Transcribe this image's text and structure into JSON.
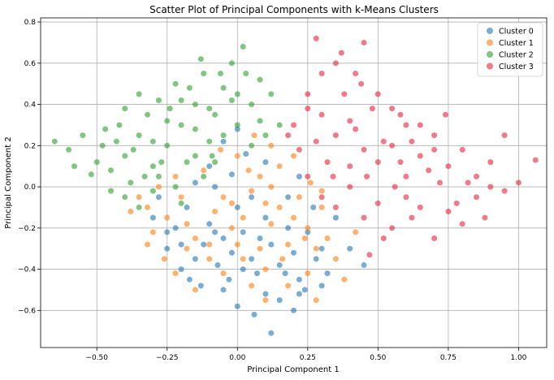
{
  "chart_data": {
    "type": "scatter",
    "title": "Scatter Plot of Principal Components with k-Means Clusters",
    "xlabel": "Principal Component 1",
    "ylabel": "Principal Component 2",
    "xlim": [
      -0.7,
      1.1
    ],
    "ylim": [
      -0.78,
      0.82
    ],
    "xticks": [
      -0.5,
      -0.25,
      0.0,
      0.25,
      0.5,
      0.75,
      1.0
    ],
    "xtick_labels": [
      "−0.50",
      "−0.25",
      "0.00",
      "0.25",
      "0.50",
      "0.75",
      "1.00"
    ],
    "yticks": [
      -0.6,
      -0.4,
      -0.2,
      0.0,
      0.2,
      0.4,
      0.6,
      0.8
    ],
    "ytick_labels": [
      "−0.6",
      "−0.4",
      "−0.2",
      "0.0",
      "0.2",
      "0.4",
      "0.6",
      "0.8"
    ],
    "grid": true,
    "legend_position": "top-right",
    "series": [
      {
        "name": "Cluster 0",
        "color": "#1f77b4",
        "points": [
          [
            0.12,
            -0.71
          ],
          [
            -0.05,
            -0.5
          ],
          [
            0.1,
            -0.52
          ],
          [
            -0.03,
            -0.45
          ],
          [
            0.2,
            -0.6
          ],
          [
            -0.15,
            -0.35
          ],
          [
            -0.2,
            -0.28
          ],
          [
            -0.1,
            -0.18
          ],
          [
            0.0,
            -0.1
          ],
          [
            0.05,
            -0.05
          ],
          [
            -0.08,
            0.0
          ],
          [
            -0.02,
            0.06
          ],
          [
            0.03,
            0.16
          ],
          [
            -0.05,
            0.22
          ],
          [
            0.0,
            0.28
          ],
          [
            0.08,
            -0.25
          ],
          [
            0.15,
            -0.38
          ],
          [
            0.22,
            -0.45
          ],
          [
            0.18,
            -0.2
          ],
          [
            0.25,
            -0.22
          ],
          [
            0.3,
            -0.3
          ],
          [
            0.35,
            -0.15
          ],
          [
            0.4,
            -0.3
          ],
          [
            0.45,
            -0.38
          ],
          [
            -0.18,
            -0.1
          ],
          [
            -0.22,
            -0.2
          ],
          [
            -0.12,
            -0.28
          ],
          [
            -0.07,
            -0.38
          ],
          [
            -0.13,
            -0.48
          ],
          [
            0.05,
            -0.35
          ],
          [
            0.1,
            -0.15
          ],
          [
            -0.25,
            -0.3
          ],
          [
            -0.3,
            -0.15
          ],
          [
            -0.28,
            -0.05
          ],
          [
            -0.15,
            0.02
          ],
          [
            -0.1,
            0.1
          ],
          [
            0.02,
            -0.22
          ],
          [
            0.12,
            -0.28
          ],
          [
            0.2,
            -0.32
          ],
          [
            0.28,
            -0.35
          ],
          [
            -0.05,
            -0.25
          ],
          [
            0.07,
            -0.42
          ],
          [
            0.15,
            -0.55
          ],
          [
            0.22,
            -0.52
          ],
          [
            -0.2,
            -0.4
          ],
          [
            -0.17,
            -0.45
          ],
          [
            0.0,
            -0.58
          ],
          [
            0.06,
            -0.62
          ],
          [
            0.32,
            -0.42
          ],
          [
            0.27,
            -0.1
          ],
          [
            0.18,
            -0.05
          ],
          [
            0.22,
            0.05
          ],
          [
            0.1,
            0.12
          ],
          [
            -0.02,
            -0.32
          ],
          [
            -0.08,
            -0.22
          ],
          [
            0.02,
            -0.4
          ],
          [
            0.17,
            -0.42
          ],
          [
            0.24,
            -0.5
          ],
          [
            0.3,
            -0.48
          ],
          [
            -0.25,
            -0.22
          ]
        ]
      },
      {
        "name": "Cluster 1",
        "color": "#ff7f0e",
        "points": [
          [
            -0.32,
            -0.1
          ],
          [
            -0.3,
            -0.22
          ],
          [
            -0.25,
            -0.15
          ],
          [
            -0.2,
            -0.05
          ],
          [
            -0.18,
            -0.18
          ],
          [
            -0.15,
            -0.25
          ],
          [
            -0.1,
            -0.35
          ],
          [
            -0.08,
            -0.12
          ],
          [
            -0.05,
            -0.05
          ],
          [
            -0.02,
            -0.2
          ],
          [
            0.0,
            -0.28
          ],
          [
            0.02,
            -0.15
          ],
          [
            0.05,
            -0.02
          ],
          [
            0.08,
            0.05
          ],
          [
            0.1,
            -0.08
          ],
          [
            0.12,
            -0.18
          ],
          [
            0.15,
            -0.1
          ],
          [
            0.18,
            -0.28
          ],
          [
            0.2,
            -0.15
          ],
          [
            0.22,
            -0.05
          ],
          [
            0.25,
            -0.2
          ],
          [
            0.28,
            -0.3
          ],
          [
            0.3,
            -0.1
          ],
          [
            0.15,
            0.1
          ],
          [
            0.12,
            0.2
          ],
          [
            0.06,
            0.25
          ],
          [
            0.0,
            0.15
          ],
          [
            -0.06,
            0.18
          ],
          [
            -0.12,
            0.08
          ],
          [
            -0.22,
            0.05
          ],
          [
            -0.28,
            0.0
          ],
          [
            -0.35,
            -0.05
          ],
          [
            -0.38,
            -0.12
          ],
          [
            -0.32,
            -0.28
          ],
          [
            -0.26,
            -0.35
          ],
          [
            -0.22,
            -0.42
          ],
          [
            -0.15,
            -0.5
          ],
          [
            -0.05,
            -0.42
          ],
          [
            0.05,
            -0.48
          ],
          [
            0.1,
            -0.55
          ],
          [
            0.18,
            -0.48
          ],
          [
            0.25,
            -0.42
          ],
          [
            0.28,
            -0.55
          ],
          [
            0.32,
            -0.25
          ],
          [
            0.35,
            -0.35
          ],
          [
            0.38,
            -0.45
          ],
          [
            0.42,
            -0.22
          ],
          [
            0.02,
            -0.35
          ],
          [
            -0.02,
            -0.08
          ],
          [
            0.08,
            -0.3
          ],
          [
            0.16,
            -0.35
          ],
          [
            0.24,
            -0.25
          ],
          [
            0.12,
            0.0
          ],
          [
            0.04,
            0.08
          ],
          [
            -0.1,
            -0.28
          ],
          [
            -0.18,
            -0.3
          ],
          [
            0.2,
            0.15
          ],
          [
            0.26,
            0.02
          ],
          [
            0.1,
            -0.4
          ],
          [
            0.3,
            -0.02
          ]
        ]
      },
      {
        "name": "Cluster 2",
        "color": "#2ca02c",
        "points": [
          [
            -0.65,
            0.22
          ],
          [
            -0.6,
            0.18
          ],
          [
            -0.55,
            0.25
          ],
          [
            -0.5,
            0.12
          ],
          [
            -0.48,
            0.2
          ],
          [
            -0.45,
            0.08
          ],
          [
            -0.42,
            0.3
          ],
          [
            -0.4,
            0.15
          ],
          [
            -0.38,
            0.02
          ],
          [
            -0.35,
            0.25
          ],
          [
            -0.32,
            0.35
          ],
          [
            -0.3,
            0.1
          ],
          [
            -0.28,
            0.42
          ],
          [
            -0.25,
            0.2
          ],
          [
            -0.22,
            0.5
          ],
          [
            -0.2,
            0.3
          ],
          [
            -0.18,
            0.12
          ],
          [
            -0.15,
            0.4
          ],
          [
            -0.12,
            0.55
          ],
          [
            -0.1,
            0.22
          ],
          [
            -0.08,
            0.35
          ],
          [
            -0.05,
            0.48
          ],
          [
            -0.02,
            0.6
          ],
          [
            0.0,
            0.3
          ],
          [
            0.02,
            0.68
          ],
          [
            0.05,
            0.4
          ],
          [
            0.08,
            0.52
          ],
          [
            0.1,
            0.25
          ],
          [
            0.12,
            0.45
          ],
          [
            0.15,
            0.3
          ],
          [
            -0.45,
            -0.02
          ],
          [
            -0.4,
            -0.05
          ],
          [
            -0.35,
            -0.1
          ],
          [
            -0.3,
            -0.02
          ],
          [
            -0.28,
            0.05
          ],
          [
            -0.22,
            0.0
          ],
          [
            -0.2,
            -0.08
          ],
          [
            -0.15,
            0.15
          ],
          [
            -0.12,
            0.05
          ],
          [
            -0.08,
            0.12
          ],
          [
            -0.4,
            0.38
          ],
          [
            -0.35,
            0.45
          ],
          [
            -0.3,
            0.22
          ],
          [
            -0.25,
            0.32
          ],
          [
            -0.2,
            0.42
          ],
          [
            -0.15,
            0.28
          ],
          [
            -0.1,
            0.38
          ],
          [
            -0.05,
            0.25
          ],
          [
            0.0,
            0.45
          ],
          [
            0.03,
            0.55
          ],
          [
            -0.52,
            0.06
          ],
          [
            -0.58,
            0.1
          ],
          [
            -0.47,
            0.28
          ],
          [
            -0.43,
            0.22
          ],
          [
            -0.37,
            0.18
          ],
          [
            -0.33,
            0.05
          ],
          [
            -0.27,
            0.12
          ],
          [
            -0.24,
            0.38
          ],
          [
            -0.17,
            0.48
          ],
          [
            -0.13,
            0.62
          ],
          [
            0.05,
            0.2
          ],
          [
            0.08,
            0.32
          ],
          [
            -0.06,
            0.55
          ],
          [
            -0.02,
            0.42
          ],
          [
            -0.09,
            0.15
          ]
        ]
      },
      {
        "name": "Cluster 3",
        "color": "#e8213a",
        "points": [
          [
            0.28,
            0.72
          ],
          [
            0.35,
            0.6
          ],
          [
            0.42,
            0.55
          ],
          [
            0.45,
            0.7
          ],
          [
            0.5,
            0.45
          ],
          [
            0.55,
            0.38
          ],
          [
            0.6,
            0.3
          ],
          [
            0.25,
            0.45
          ],
          [
            0.3,
            0.35
          ],
          [
            0.35,
            0.25
          ],
          [
            0.4,
            0.32
          ],
          [
            0.45,
            0.18
          ],
          [
            0.5,
            0.12
          ],
          [
            0.55,
            0.2
          ],
          [
            0.6,
            0.05
          ],
          [
            0.65,
            0.15
          ],
          [
            0.7,
            0.25
          ],
          [
            0.75,
            0.1
          ],
          [
            0.8,
            0.18
          ],
          [
            0.85,
            0.05
          ],
          [
            0.9,
            0.12
          ],
          [
            0.95,
            0.25
          ],
          [
            1.0,
            0.02
          ],
          [
            1.06,
            0.13
          ],
          [
            0.25,
            0.05
          ],
          [
            0.3,
            -0.05
          ],
          [
            0.35,
            -0.1
          ],
          [
            0.4,
            0.0
          ],
          [
            0.45,
            -0.15
          ],
          [
            0.5,
            -0.08
          ],
          [
            0.55,
            -0.2
          ],
          [
            0.6,
            -0.05
          ],
          [
            0.65,
            -0.1
          ],
          [
            0.7,
            -0.25
          ],
          [
            0.75,
            -0.12
          ],
          [
            0.8,
            -0.18
          ],
          [
            0.85,
            -0.05
          ],
          [
            0.9,
            0.0
          ],
          [
            0.95,
            -0.02
          ],
          [
            0.2,
            0.3
          ],
          [
            0.22,
            0.18
          ],
          [
            0.28,
            0.22
          ],
          [
            0.32,
            0.12
          ],
          [
            0.38,
            0.45
          ],
          [
            0.42,
            0.28
          ],
          [
            0.48,
            0.38
          ],
          [
            0.52,
            0.22
          ],
          [
            0.58,
            0.12
          ],
          [
            0.62,
            0.22
          ],
          [
            0.68,
            0.08
          ],
          [
            0.72,
            0.02
          ],
          [
            0.78,
            -0.08
          ],
          [
            0.82,
            0.02
          ],
          [
            0.88,
            -0.15
          ],
          [
            0.47,
            -0.33
          ],
          [
            0.52,
            -0.25
          ],
          [
            0.3,
            0.55
          ],
          [
            0.37,
            0.65
          ],
          [
            0.25,
            0.38
          ],
          [
            0.18,
            0.25
          ],
          [
            0.65,
            0.3
          ],
          [
            0.7,
            0.18
          ],
          [
            0.74,
            0.35
          ],
          [
            0.4,
            0.1
          ],
          [
            0.34,
            0.05
          ],
          [
            0.46,
            0.05
          ],
          [
            0.56,
            0.0
          ],
          [
            0.44,
            0.5
          ],
          [
            0.62,
            -0.15
          ],
          [
            0.58,
            0.35
          ]
        ]
      }
    ]
  }
}
